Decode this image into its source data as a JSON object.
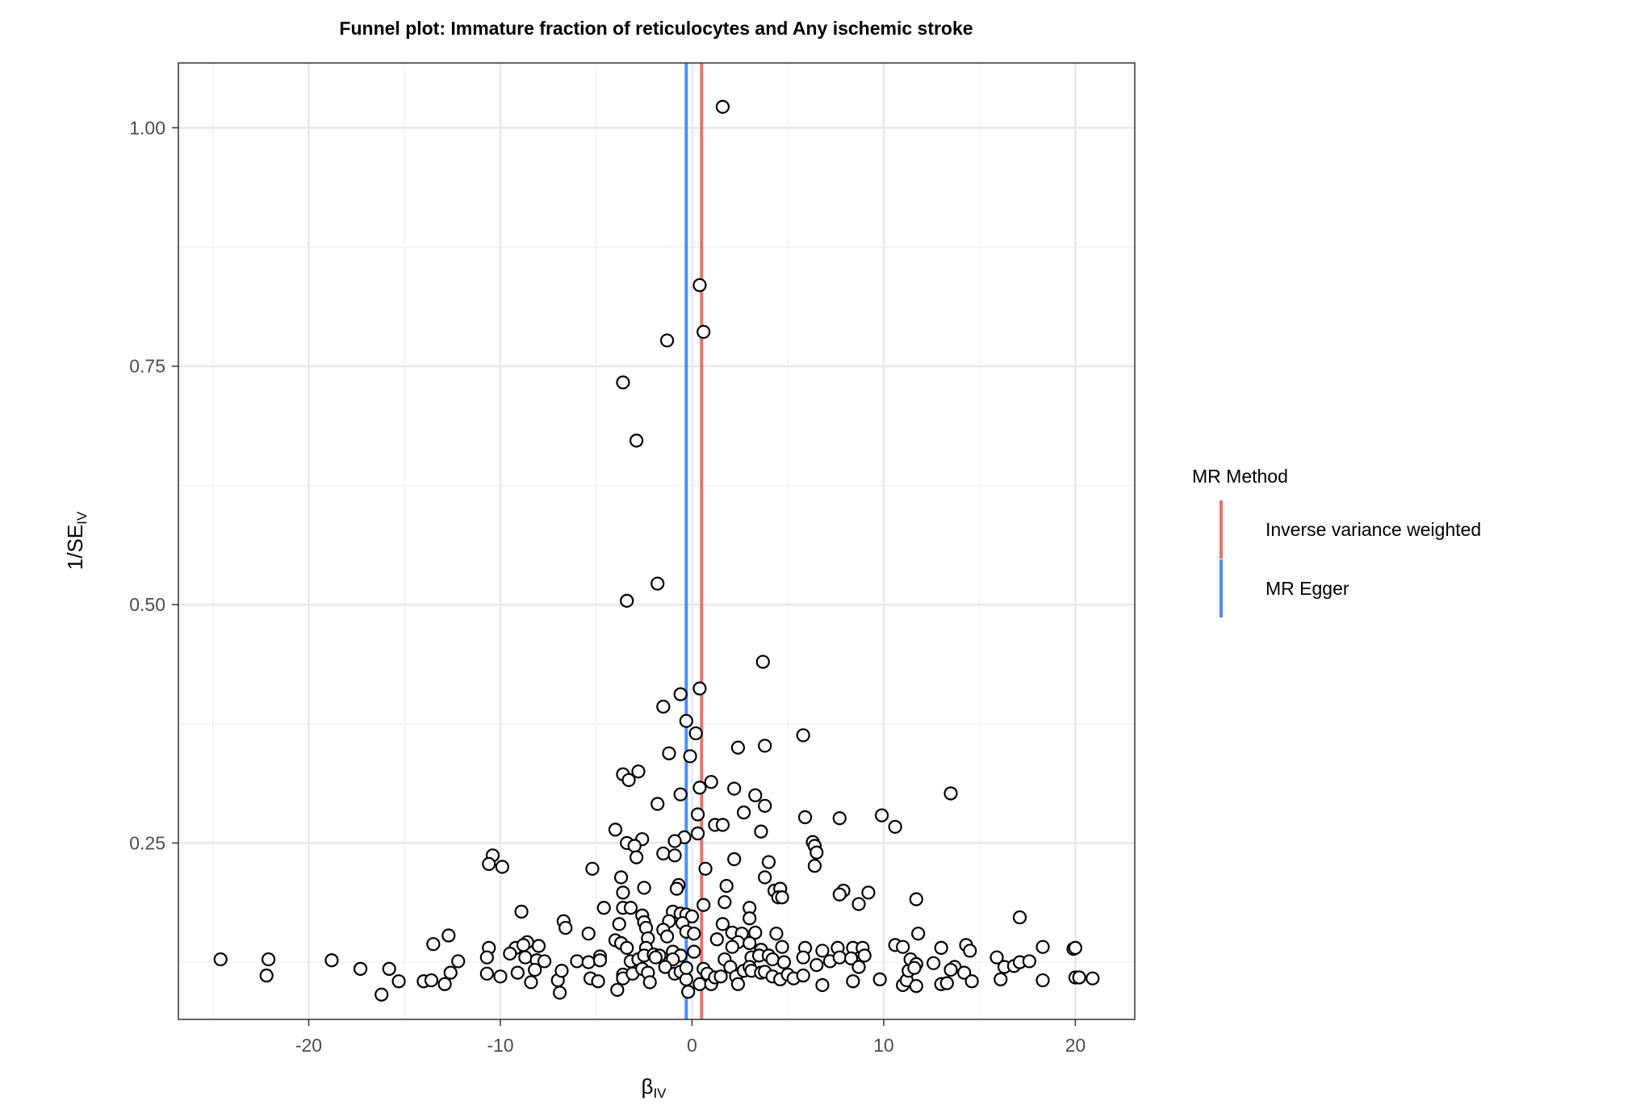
{
  "chart_data": {
    "type": "scatter",
    "title": "Funnel plot: Immature fraction of reticulocytes and Any ischemic stroke",
    "xlabel": "β",
    "xlabel_sub": "IV",
    "ylabel": "1/SE",
    "ylabel_sub": "IV",
    "xlim": [
      -26.8,
      23.1
    ],
    "ylim": [
      0.065,
      1.068
    ],
    "x_ticks": [
      -20,
      -10,
      0,
      10,
      20
    ],
    "y_ticks": [
      0.25,
      0.5,
      0.75,
      1.0
    ],
    "x_tick_labels": [
      "-20",
      "-10",
      "0",
      "10",
      "20"
    ],
    "y_tick_labels": [
      "0.25",
      "0.50",
      "0.75",
      "1.00"
    ],
    "grid": true,
    "legend_position": "right",
    "legend_title": "MR Method",
    "methods": [
      {
        "name": "Inverse variance weighted",
        "beta": 0.5,
        "color": "#E7736B"
      },
      {
        "name": "MR Egger",
        "beta": -0.3,
        "color": "#4D8FF5"
      }
    ],
    "points": [
      [
        1.6,
        1.022
      ],
      [
        0.4,
        0.835
      ],
      [
        0.6,
        0.786
      ],
      [
        -1.3,
        0.777
      ],
      [
        -3.6,
        0.733
      ],
      [
        -2.9,
        0.672
      ],
      [
        -1.8,
        0.522
      ],
      [
        -3.4,
        0.504
      ],
      [
        3.7,
        0.44
      ],
      [
        0.4,
        0.412
      ],
      [
        -0.6,
        0.406
      ],
      [
        -0.3,
        0.378
      ],
      [
        -1.5,
        0.393
      ],
      [
        0.2,
        0.365
      ],
      [
        5.8,
        0.363
      ],
      [
        2.4,
        0.35
      ],
      [
        3.8,
        0.352
      ],
      [
        -1.2,
        0.344
      ],
      [
        -0.1,
        0.341
      ],
      [
        -2.8,
        0.325
      ],
      [
        -3.6,
        0.322
      ],
      [
        -3.3,
        0.316
      ],
      [
        1.0,
        0.314
      ],
      [
        0.4,
        0.308
      ],
      [
        2.2,
        0.307
      ],
      [
        3.3,
        0.3
      ],
      [
        -0.6,
        0.301
      ],
      [
        13.5,
        0.302
      ],
      [
        -1.8,
        0.291
      ],
      [
        3.8,
        0.289
      ],
      [
        2.7,
        0.282
      ],
      [
        0.3,
        0.28
      ],
      [
        5.9,
        0.277
      ],
      [
        7.7,
        0.276
      ],
      [
        9.9,
        0.279
      ],
      [
        1.2,
        0.269
      ],
      [
        1.6,
        0.269
      ],
      [
        10.6,
        0.267
      ],
      [
        -4.0,
        0.264
      ],
      [
        3.6,
        0.262
      ],
      [
        0.3,
        0.26
      ],
      [
        -0.4,
        0.256
      ],
      [
        -0.9,
        0.252
      ],
      [
        -2.6,
        0.254
      ],
      [
        -3.4,
        0.25
      ],
      [
        -3.0,
        0.247
      ],
      [
        6.3,
        0.251
      ],
      [
        6.4,
        0.247
      ],
      [
        6.5,
        0.24
      ],
      [
        -1.5,
        0.239
      ],
      [
        -0.9,
        0.237
      ],
      [
        -2.9,
        0.235
      ],
      [
        -10.4,
        0.237
      ],
      [
        -10.6,
        0.228
      ],
      [
        -9.9,
        0.225
      ],
      [
        -5.2,
        0.223
      ],
      [
        0.7,
        0.223
      ],
      [
        2.2,
        0.233
      ],
      [
        4.0,
        0.23
      ],
      [
        6.4,
        0.226
      ],
      [
        -3.7,
        0.214
      ],
      [
        3.8,
        0.214
      ],
      [
        -2.5,
        0.203
      ],
      [
        -0.7,
        0.206
      ],
      [
        -0.8,
        0.202
      ],
      [
        1.8,
        0.205
      ],
      [
        4.3,
        0.2
      ],
      [
        4.6,
        0.202
      ],
      [
        4.5,
        0.193
      ],
      [
        4.7,
        0.193
      ],
      [
        7.9,
        0.2
      ],
      [
        7.7,
        0.196
      ],
      [
        9.2,
        0.198
      ],
      [
        11.7,
        0.191
      ],
      [
        -3.6,
        0.198
      ],
      [
        1.7,
        0.188
      ],
      [
        8.7,
        0.186
      ],
      [
        0.6,
        0.185
      ],
      [
        -3.6,
        0.182
      ],
      [
        -3.2,
        0.182
      ],
      [
        -4.6,
        0.182
      ],
      [
        3.0,
        0.182
      ],
      [
        -8.9,
        0.178
      ],
      [
        -2.6,
        0.174
      ],
      [
        -1.0,
        0.178
      ],
      [
        -0.6,
        0.176
      ],
      [
        -0.3,
        0.175
      ],
      [
        0.0,
        0.173
      ],
      [
        17.1,
        0.172
      ],
      [
        -6.7,
        0.168
      ],
      [
        -3.8,
        0.165
      ],
      [
        -2.5,
        0.167
      ],
      [
        -1.2,
        0.168
      ],
      [
        -0.5,
        0.166
      ],
      [
        1.6,
        0.165
      ],
      [
        3.0,
        0.171
      ],
      [
        -6.6,
        0.161
      ],
      [
        -2.4,
        0.161
      ],
      [
        -1.5,
        0.159
      ],
      [
        -0.3,
        0.157
      ],
      [
        2.1,
        0.156
      ],
      [
        2.6,
        0.155
      ],
      [
        3.3,
        0.156
      ],
      [
        4.4,
        0.155
      ],
      [
        11.8,
        0.155
      ],
      [
        -5.4,
        0.155
      ],
      [
        -4.0,
        0.148
      ],
      [
        -3.7,
        0.145
      ],
      [
        -2.3,
        0.15
      ],
      [
        -1.3,
        0.152
      ],
      [
        0.1,
        0.155
      ],
      [
        1.3,
        0.149
      ],
      [
        2.4,
        0.146
      ],
      [
        3.0,
        0.145
      ],
      [
        -12.7,
        0.153
      ],
      [
        -13.5,
        0.144
      ],
      [
        -10.6,
        0.14
      ],
      [
        -9.2,
        0.14
      ],
      [
        -8.6,
        0.146
      ],
      [
        -8.8,
        0.143
      ],
      [
        -8.0,
        0.142
      ],
      [
        -3.4,
        0.14
      ],
      [
        -2.4,
        0.14
      ],
      [
        -1.0,
        0.136
      ],
      [
        0.1,
        0.136
      ],
      [
        2.1,
        0.141
      ],
      [
        3.6,
        0.138
      ],
      [
        4.7,
        0.141
      ],
      [
        5.9,
        0.14
      ],
      [
        6.8,
        0.137
      ],
      [
        7.6,
        0.14
      ],
      [
        8.4,
        0.14
      ],
      [
        8.9,
        0.14
      ],
      [
        10.6,
        0.143
      ],
      [
        11.0,
        0.141
      ],
      [
        13.0,
        0.14
      ],
      [
        14.3,
        0.143
      ],
      [
        14.5,
        0.137
      ],
      [
        18.3,
        0.141
      ],
      [
        19.9,
        0.139
      ],
      [
        20.0,
        0.14
      ],
      [
        -24.6,
        0.128
      ],
      [
        -22.1,
        0.128
      ],
      [
        -18.8,
        0.127
      ],
      [
        -12.2,
        0.126
      ],
      [
        -10.7,
        0.13
      ],
      [
        -9.5,
        0.134
      ],
      [
        -8.7,
        0.13
      ],
      [
        -8.1,
        0.127
      ],
      [
        -7.7,
        0.126
      ],
      [
        -6.0,
        0.126
      ],
      [
        -5.4,
        0.125
      ],
      [
        -4.8,
        0.131
      ],
      [
        -4.8,
        0.127
      ],
      [
        -3.2,
        0.126
      ],
      [
        -2.8,
        0.128
      ],
      [
        -2.5,
        0.132
      ],
      [
        -2.0,
        0.133
      ],
      [
        -1.7,
        0.132
      ],
      [
        -0.6,
        0.132
      ],
      [
        -1.0,
        0.128
      ],
      [
        -1.9,
        0.13
      ],
      [
        1.7,
        0.128
      ],
      [
        3.1,
        0.13
      ],
      [
        3.5,
        0.132
      ],
      [
        4.0,
        0.132
      ],
      [
        4.2,
        0.128
      ],
      [
        4.8,
        0.125
      ],
      [
        5.8,
        0.13
      ],
      [
        6.5,
        0.122
      ],
      [
        7.2,
        0.126
      ],
      [
        7.7,
        0.13
      ],
      [
        8.3,
        0.129
      ],
      [
        9.0,
        0.132
      ],
      [
        11.4,
        0.128
      ],
      [
        11.7,
        0.123
      ],
      [
        12.6,
        0.124
      ],
      [
        13.7,
        0.12
      ],
      [
        15.9,
        0.13
      ],
      [
        16.3,
        0.12
      ],
      [
        16.8,
        0.121
      ],
      [
        17.1,
        0.125
      ],
      [
        17.6,
        0.126
      ],
      [
        -22.2,
        0.111
      ],
      [
        -17.3,
        0.118
      ],
      [
        -15.8,
        0.118
      ],
      [
        -15.3,
        0.105
      ],
      [
        -16.2,
        0.091
      ],
      [
        -14.0,
        0.105
      ],
      [
        -13.6,
        0.106
      ],
      [
        -12.9,
        0.102
      ],
      [
        -12.6,
        0.114
      ],
      [
        -10.7,
        0.113
      ],
      [
        -10.0,
        0.11
      ],
      [
        -9.1,
        0.114
      ],
      [
        -8.4,
        0.104
      ],
      [
        -8.2,
        0.117
      ],
      [
        -7.0,
        0.106
      ],
      [
        -6.8,
        0.116
      ],
      [
        -6.9,
        0.093
      ],
      [
        -5.3,
        0.108
      ],
      [
        -4.9,
        0.105
      ],
      [
        -3.9,
        0.096
      ],
      [
        -3.6,
        0.112
      ],
      [
        -3.6,
        0.108
      ],
      [
        -3.1,
        0.113
      ],
      [
        -2.6,
        0.118
      ],
      [
        -2.3,
        0.114
      ],
      [
        -2.2,
        0.104
      ],
      [
        -1.4,
        0.12
      ],
      [
        -0.9,
        0.113
      ],
      [
        -0.6,
        0.115
      ],
      [
        -0.3,
        0.107
      ],
      [
        -0.2,
        0.094
      ],
      [
        -0.3,
        0.119
      ],
      [
        0.4,
        0.102
      ],
      [
        0.6,
        0.118
      ],
      [
        0.8,
        0.113
      ],
      [
        1.0,
        0.102
      ],
      [
        1.2,
        0.109
      ],
      [
        1.5,
        0.11
      ],
      [
        2.0,
        0.12
      ],
      [
        2.3,
        0.11
      ],
      [
        2.4,
        0.102
      ],
      [
        2.7,
        0.116
      ],
      [
        3.0,
        0.12
      ],
      [
        3.1,
        0.116
      ],
      [
        3.6,
        0.114
      ],
      [
        3.8,
        0.115
      ],
      [
        4.2,
        0.11
      ],
      [
        4.6,
        0.107
      ],
      [
        5.0,
        0.112
      ],
      [
        5.3,
        0.108
      ],
      [
        5.8,
        0.111
      ],
      [
        6.8,
        0.101
      ],
      [
        8.4,
        0.105
      ],
      [
        8.7,
        0.12
      ],
      [
        9.8,
        0.107
      ],
      [
        11.0,
        0.101
      ],
      [
        11.2,
        0.106
      ],
      [
        11.3,
        0.116
      ],
      [
        11.6,
        0.119
      ],
      [
        11.7,
        0.1
      ],
      [
        13.0,
        0.102
      ],
      [
        13.3,
        0.103
      ],
      [
        13.5,
        0.117
      ],
      [
        14.2,
        0.114
      ],
      [
        14.6,
        0.105
      ],
      [
        16.1,
        0.107
      ],
      [
        18.3,
        0.106
      ],
      [
        20.0,
        0.109
      ],
      [
        20.2,
        0.109
      ],
      [
        20.9,
        0.108
      ]
    ]
  }
}
